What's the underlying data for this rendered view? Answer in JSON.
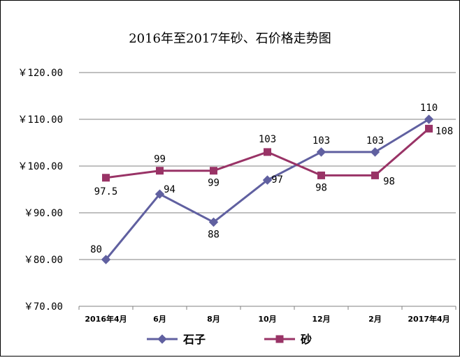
{
  "chart_data": {
    "type": "line",
    "title": "2016年至2017年砂、石价格走势图",
    "categories": [
      "2016年4月",
      "6月",
      "8月",
      "10月",
      "12月",
      "2月",
      "2017年4月"
    ],
    "y_ticks": [
      "￥70.00",
      "￥80.00",
      "￥90.00",
      "￥100.00",
      "￥110.00",
      "￥120.00"
    ],
    "ylim": [
      70,
      120
    ],
    "grid": true,
    "legend_position": "bottom",
    "series": [
      {
        "name": "石子",
        "values": [
          80,
          94,
          88,
          97,
          103,
          103,
          110
        ],
        "labels": [
          "80",
          "94",
          "88",
          "97",
          "103",
          "103",
          "110"
        ],
        "color": "#6060A0",
        "marker": "diamond"
      },
      {
        "name": "砂",
        "values": [
          97.5,
          99,
          99,
          103,
          98,
          98,
          108
        ],
        "labels": [
          "97.5",
          "99",
          "99",
          "103",
          "98",
          "98",
          "108"
        ],
        "color": "#993366",
        "marker": "square"
      }
    ]
  }
}
